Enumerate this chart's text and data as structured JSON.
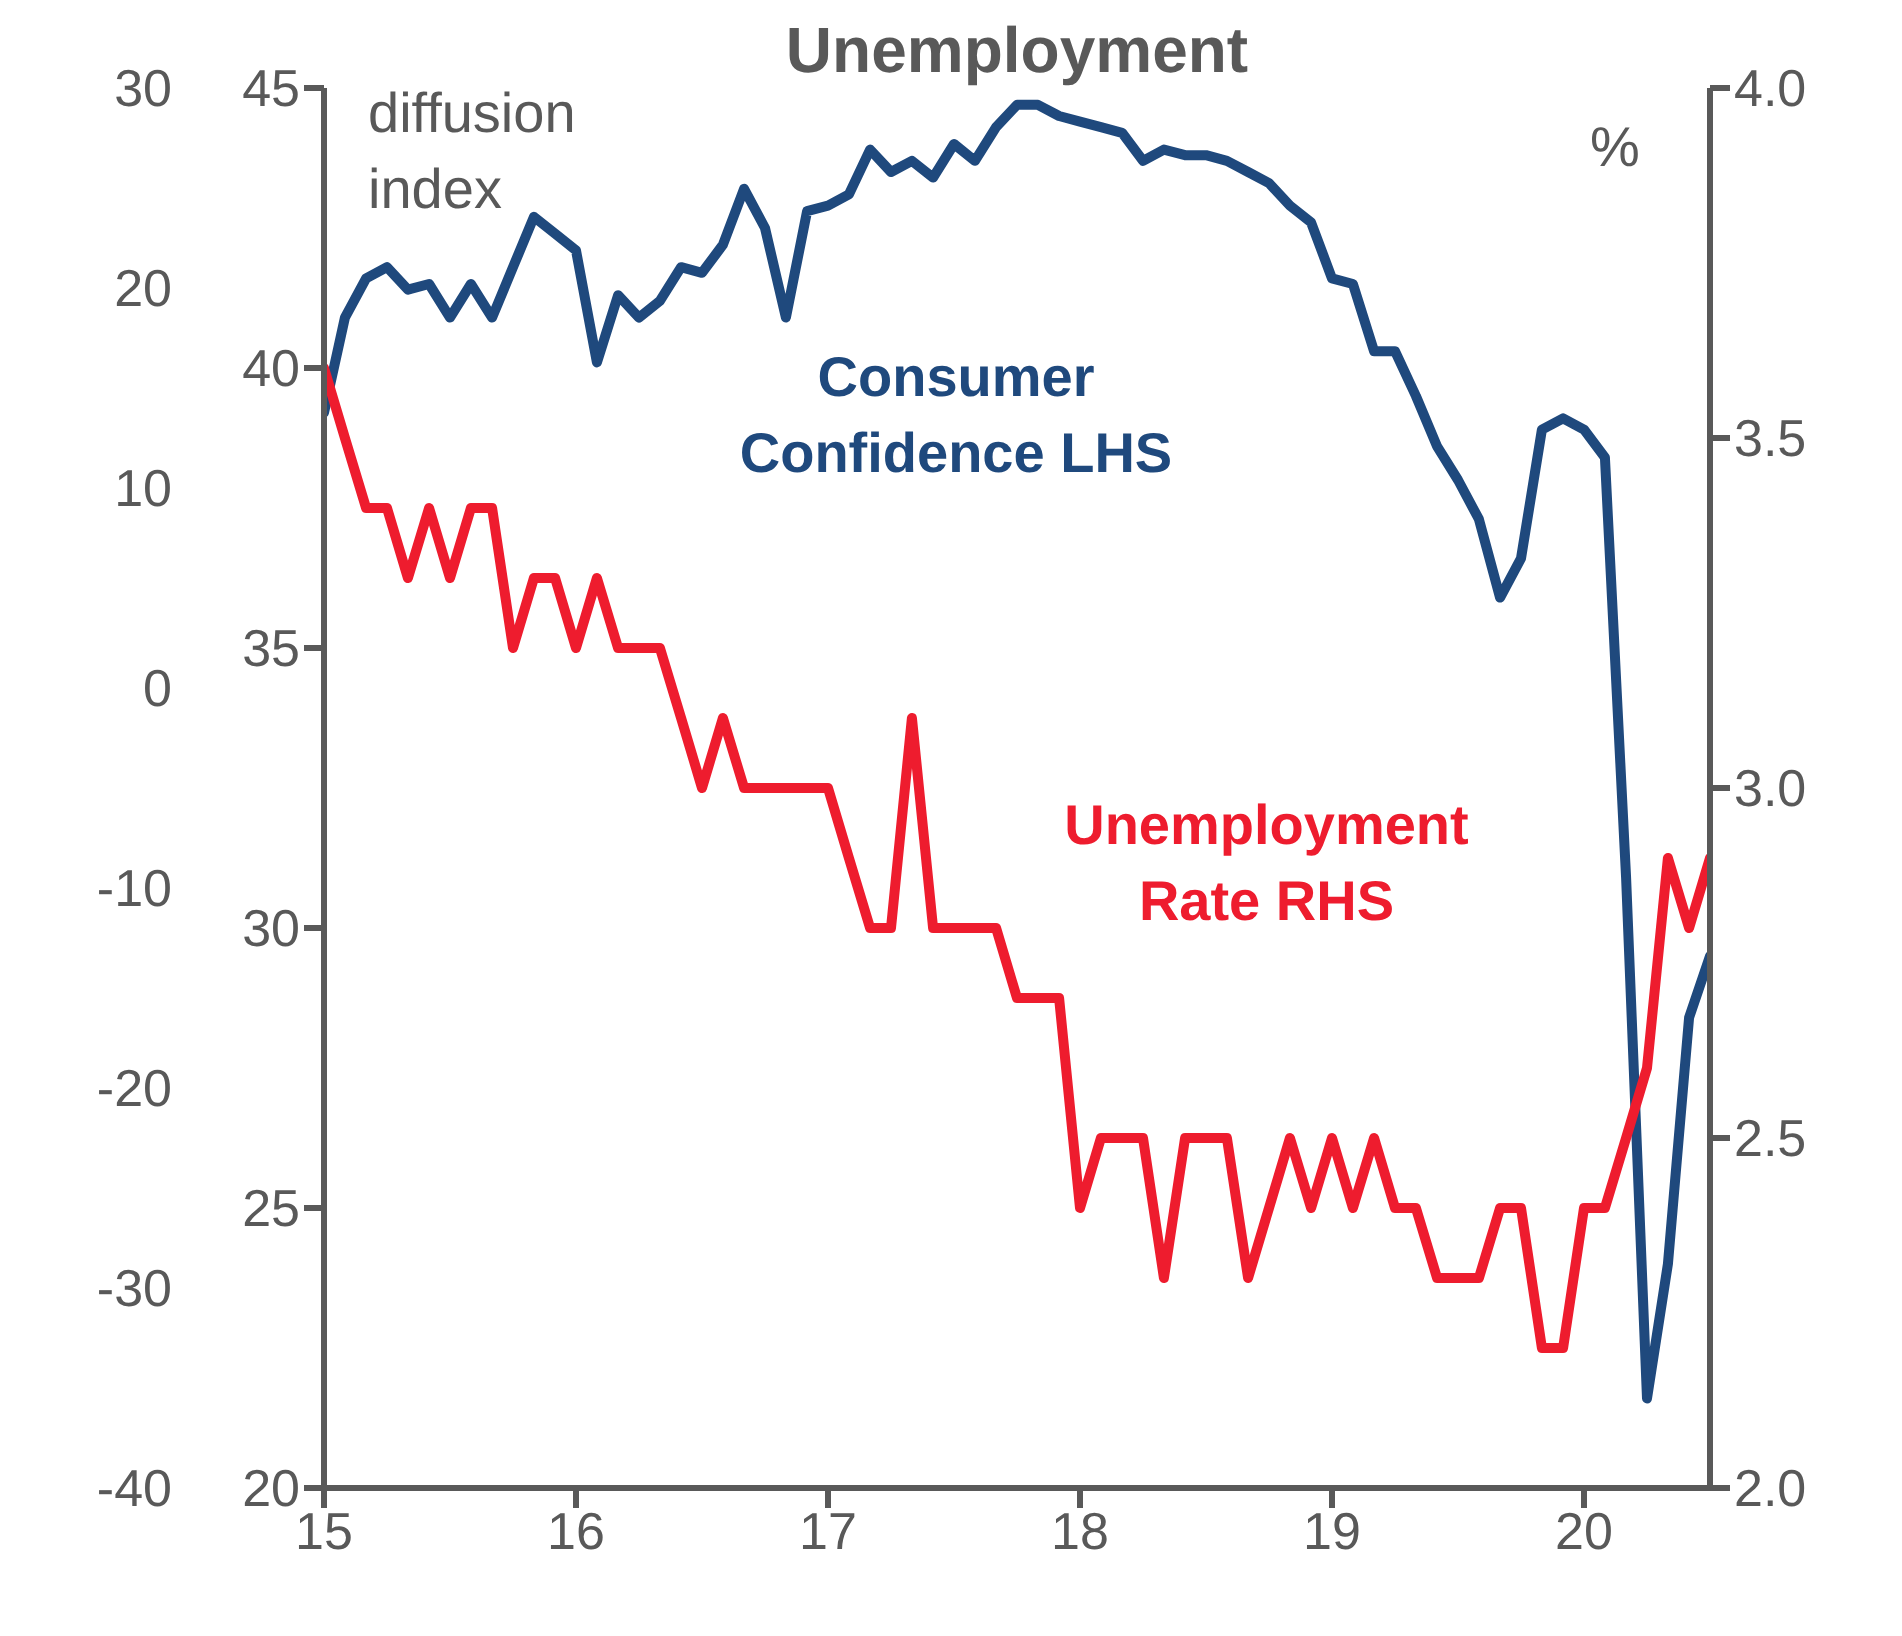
{
  "chart_data": {
    "type": "line",
    "title": "Unemployment",
    "ylabel": "diffusion index",
    "y2label": "%",
    "x": [
      15,
      15.083,
      15.167,
      15.25,
      15.333,
      15.417,
      15.5,
      15.583,
      15.667,
      15.75,
      15.833,
      15.917,
      16,
      16.083,
      16.167,
      16.25,
      16.333,
      16.417,
      16.5,
      16.583,
      16.667,
      16.75,
      16.833,
      16.917,
      17,
      17.083,
      17.167,
      17.25,
      17.333,
      17.417,
      17.5,
      17.583,
      17.667,
      17.75,
      17.833,
      17.917,
      18,
      18.083,
      18.167,
      18.25,
      18.333,
      18.417,
      18.5,
      18.583,
      18.667,
      18.75,
      18.833,
      18.917,
      19,
      19.083,
      19.167,
      19.25,
      19.333,
      19.417,
      19.5,
      19.583,
      19.667,
      19.75,
      19.833,
      19.917,
      20,
      20.083,
      20.167,
      20.25,
      20.333,
      20.417,
      20.5
    ],
    "series": [
      {
        "name": "Consumer Confidence LHS",
        "color": "#1f497d",
        "axis": "y",
        "values": [
          39.2,
          40.9,
          41.6,
          41.8,
          41.4,
          41.5,
          40.9,
          41.5,
          40.9,
          41.8,
          42.7,
          42.4,
          42.1,
          40.1,
          41.3,
          40.9,
          41.2,
          41.8,
          41.7,
          42.2,
          43.2,
          42.5,
          40.9,
          42.8,
          42.9,
          43.1,
          43.9,
          43.5,
          43.7,
          43.4,
          44.0,
          43.7,
          44.3,
          44.7,
          44.7,
          44.5,
          44.4,
          44.3,
          44.2,
          43.7,
          43.9,
          43.8,
          43.8,
          43.7,
          43.5,
          43.3,
          42.9,
          42.6,
          41.6,
          41.5,
          40.3,
          40.3,
          39.5,
          38.6,
          38.0,
          37.3,
          35.9,
          36.6,
          38.9,
          39.1,
          38.9,
          38.4,
          30.9,
          21.6,
          24.0,
          28.4,
          29.5
        ]
      },
      {
        "name": "Unemployment Rate RHS",
        "color": "#ee1c2e",
        "axis": "y2",
        "values": [
          3.6,
          3.5,
          3.4,
          3.4,
          3.3,
          3.4,
          3.3,
          3.4,
          3.4,
          3.2,
          3.3,
          3.3,
          3.2,
          3.3,
          3.2,
          3.2,
          3.2,
          3.1,
          3.0,
          3.1,
          3.0,
          3.0,
          3.0,
          3.0,
          3.0,
          2.9,
          2.8,
          2.8,
          3.1,
          2.8,
          2.8,
          2.8,
          2.8,
          2.7,
          2.7,
          2.7,
          2.4,
          2.5,
          2.5,
          2.5,
          2.3,
          2.5,
          2.5,
          2.5,
          2.3,
          2.4,
          2.5,
          2.4,
          2.5,
          2.4,
          2.5,
          2.4,
          2.4,
          2.3,
          2.3,
          2.3,
          2.4,
          2.4,
          2.2,
          2.2,
          2.4,
          2.4,
          2.5,
          2.6,
          2.9,
          2.8,
          2.9
        ]
      }
    ],
    "xlim": [
      15,
      20.5
    ],
    "xticks": [
      15,
      16,
      17,
      18,
      19,
      20
    ],
    "ylim": [
      20,
      45
    ],
    "yticks": [
      20,
      25,
      30,
      35,
      40,
      45
    ],
    "y2lim": [
      2.0,
      4.0
    ],
    "y2ticks": [
      {
        "value": 2.0,
        "label": "2.0"
      },
      2.5,
      {
        "value": 3.0,
        "label": "3.0"
      },
      3.5,
      {
        "value": 4.0,
        "label": "4.0"
      }
    ],
    "y3lim": [
      -40,
      30
    ],
    "y3ticks": [
      -40,
      -30,
      -20,
      -10,
      0,
      10,
      20,
      30
    ],
    "grid": false,
    "marker": "none",
    "line_style": "solid"
  }
}
